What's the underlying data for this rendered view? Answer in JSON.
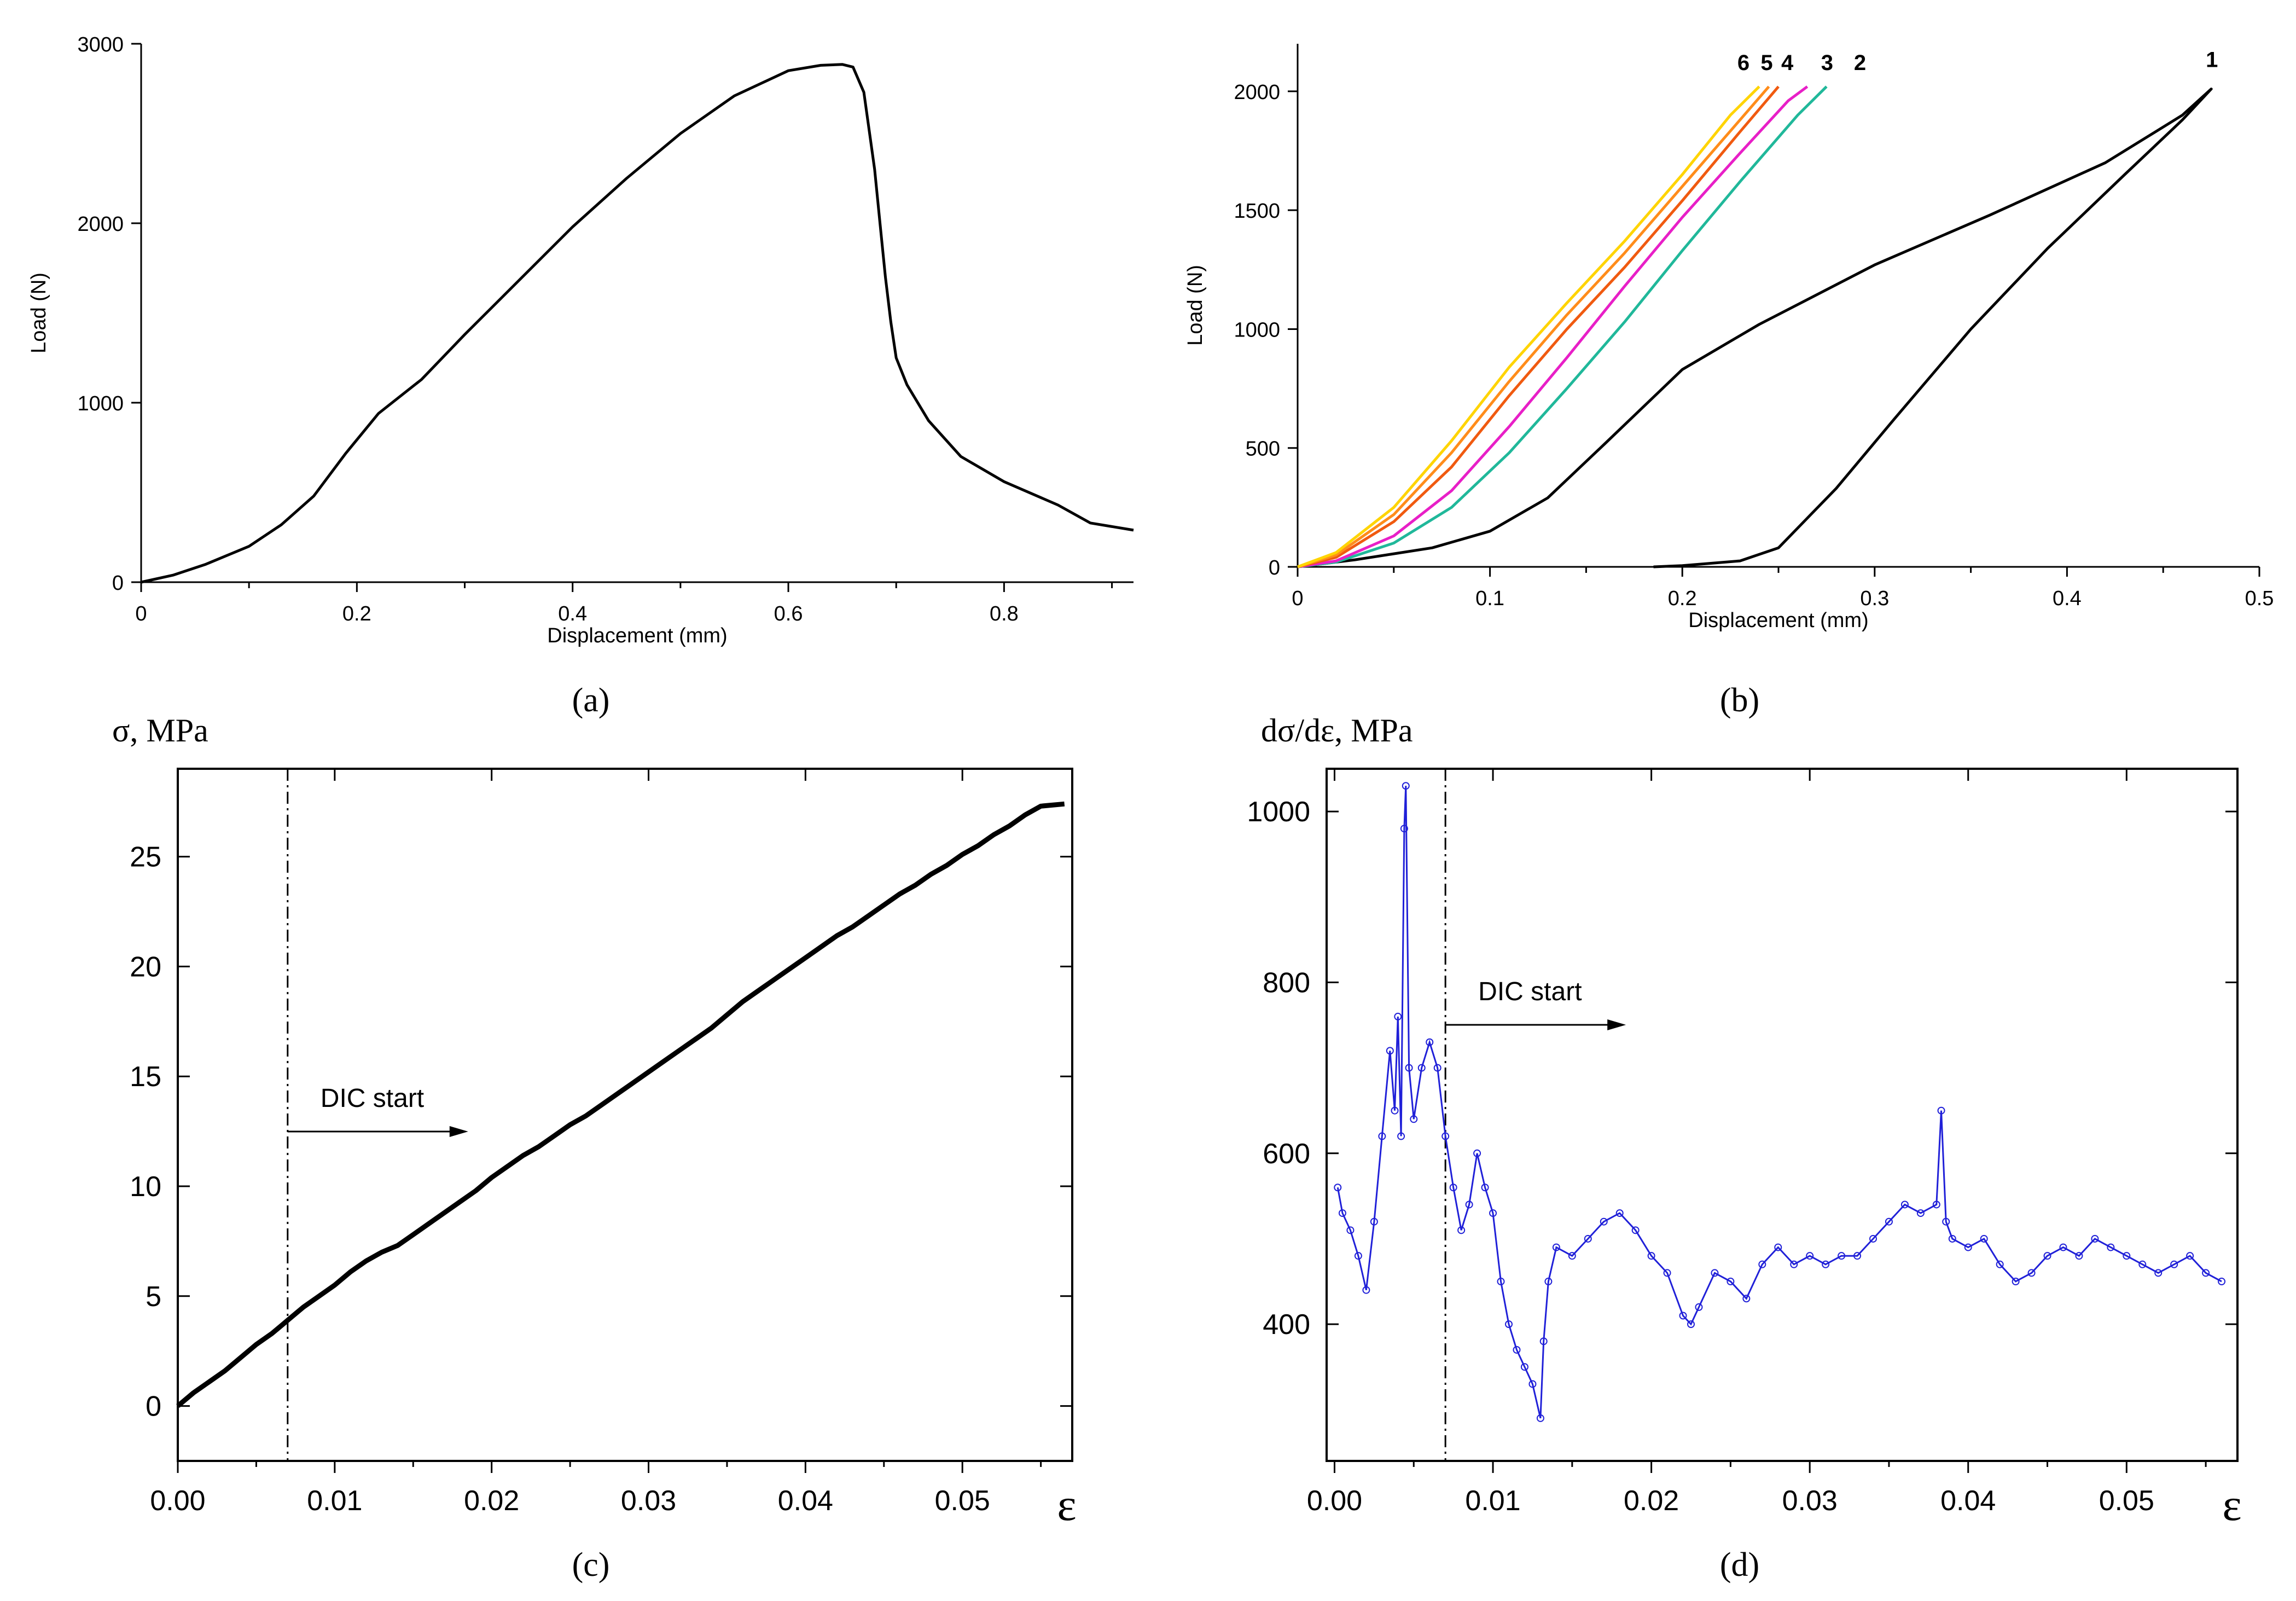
{
  "captions": {
    "a": "(a)",
    "b": "(b)",
    "c": "(c)",
    "d": "(d)"
  },
  "chart_data": [
    {
      "id": "a",
      "type": "line",
      "title": "",
      "xlabel": "Displacement (mm)",
      "ylabel": "Load (N)",
      "xlim": [
        0,
        0.92
      ],
      "ylim": [
        0,
        3000
      ],
      "xticks": [
        "0",
        "0.2",
        "0.4",
        "0.6",
        "0.8"
      ],
      "xtick_values": [
        0,
        0.2,
        0.4,
        0.6,
        0.8
      ],
      "yticks": [
        "0",
        "1000",
        "2000",
        "3000"
      ],
      "ytick_values": [
        0,
        1000,
        2000,
        3000
      ],
      "grid": false,
      "series": [
        {
          "name": "load-displacement",
          "color": "#000000",
          "x": [
            0,
            0.03,
            0.06,
            0.1,
            0.13,
            0.16,
            0.19,
            0.22,
            0.26,
            0.3,
            0.35,
            0.4,
            0.45,
            0.5,
            0.55,
            0.6,
            0.63,
            0.65,
            0.66,
            0.67,
            0.68,
            0.685,
            0.69,
            0.695,
            0.7,
            0.71,
            0.73,
            0.76,
            0.8,
            0.85,
            0.88,
            0.92
          ],
          "y": [
            0,
            40,
            100,
            200,
            320,
            480,
            720,
            940,
            1130,
            1380,
            1680,
            1980,
            2250,
            2500,
            2710,
            2850,
            2880,
            2885,
            2870,
            2730,
            2300,
            2000,
            1700,
            1450,
            1250,
            1100,
            900,
            700,
            560,
            430,
            330,
            290
          ]
        }
      ]
    },
    {
      "id": "b",
      "type": "line",
      "title": "",
      "xlabel": "Displacement (mm)",
      "ylabel": "Load (N)",
      "xlim": [
        0,
        0.5
      ],
      "ylim": [
        0,
        2200
      ],
      "xticks": [
        "0",
        "0.1",
        "0.2",
        "0.3",
        "0.4",
        "0.5"
      ],
      "xtick_values": [
        0,
        0.1,
        0.2,
        0.3,
        0.4,
        0.5
      ],
      "yticks": [
        "0",
        "500",
        "1000",
        "1500",
        "2000"
      ],
      "ytick_values": [
        0,
        500,
        1000,
        1500,
        2000
      ],
      "grid": false,
      "series": [
        {
          "name": "1",
          "color": "#000000",
          "x": [
            0,
            0.03,
            0.07,
            0.1,
            0.13,
            0.16,
            0.2,
            0.24,
            0.3,
            0.36,
            0.42,
            0.46,
            0.475,
            0.46,
            0.43,
            0.39,
            0.35,
            0.31,
            0.28,
            0.25,
            0.23,
            0.2,
            0.185
          ],
          "y": [
            0,
            30,
            80,
            150,
            290,
            520,
            830,
            1020,
            1270,
            1480,
            1700,
            1900,
            2010,
            1880,
            1650,
            1340,
            1000,
            620,
            330,
            80,
            25,
            5,
            0
          ]
        },
        {
          "name": "2",
          "color": "#20b89a",
          "x": [
            0,
            0.02,
            0.05,
            0.08,
            0.11,
            0.14,
            0.17,
            0.2,
            0.23,
            0.26,
            0.275
          ],
          "y": [
            0,
            20,
            100,
            250,
            480,
            750,
            1030,
            1330,
            1620,
            1900,
            2020
          ]
        },
        {
          "name": "3",
          "color": "#e81fc7",
          "x": [
            0,
            0.02,
            0.05,
            0.08,
            0.11,
            0.14,
            0.17,
            0.2,
            0.23,
            0.255,
            0.265
          ],
          "y": [
            0,
            25,
            130,
            320,
            590,
            880,
            1180,
            1470,
            1740,
            1960,
            2020
          ]
        },
        {
          "name": "4",
          "color": "#f05a10",
          "x": [
            0,
            0.02,
            0.05,
            0.08,
            0.11,
            0.14,
            0.17,
            0.2,
            0.23,
            0.25
          ],
          "y": [
            0,
            40,
            190,
            420,
            720,
            1000,
            1260,
            1540,
            1830,
            2020
          ]
        },
        {
          "name": "5",
          "color": "#ff8c1a",
          "x": [
            0,
            0.02,
            0.05,
            0.08,
            0.11,
            0.14,
            0.17,
            0.2,
            0.23,
            0.245
          ],
          "y": [
            0,
            50,
            220,
            480,
            780,
            1060,
            1320,
            1600,
            1880,
            2020
          ]
        },
        {
          "name": "6",
          "color": "#ffd400",
          "x": [
            0,
            0.02,
            0.05,
            0.08,
            0.11,
            0.14,
            0.17,
            0.2,
            0.225,
            0.24
          ],
          "y": [
            0,
            60,
            250,
            530,
            840,
            1110,
            1370,
            1650,
            1900,
            2020
          ]
        }
      ]
    },
    {
      "id": "c",
      "type": "line",
      "title": "",
      "xlabel": "ε",
      "ylabel": "σ, MPa",
      "xlim": [
        0,
        0.057
      ],
      "ylim": [
        -2.5,
        29
      ],
      "xticks": [
        "0.00",
        "0.01",
        "0.02",
        "0.03",
        "0.04",
        "0.05"
      ],
      "xtick_values": [
        0,
        0.01,
        0.02,
        0.03,
        0.04,
        0.05
      ],
      "yticks": [
        "0",
        "5",
        "10",
        "15",
        "20",
        "25"
      ],
      "ytick_values": [
        0,
        5,
        10,
        15,
        20,
        25
      ],
      "grid": false,
      "vline": 0.007,
      "annotation": "DIC start",
      "series": [
        {
          "name": "sigma",
          "color": "#000000",
          "x": [
            0,
            0.001,
            0.002,
            0.003,
            0.004,
            0.005,
            0.006,
            0.007,
            0.008,
            0.009,
            0.01,
            0.011,
            0.012,
            0.013,
            0.014,
            0.015,
            0.016,
            0.017,
            0.018,
            0.019,
            0.02,
            0.021,
            0.022,
            0.023,
            0.024,
            0.025,
            0.026,
            0.027,
            0.028,
            0.029,
            0.03,
            0.031,
            0.032,
            0.033,
            0.034,
            0.035,
            0.036,
            0.037,
            0.038,
            0.039,
            0.04,
            0.041,
            0.042,
            0.043,
            0.044,
            0.045,
            0.046,
            0.047,
            0.048,
            0.049,
            0.05,
            0.051,
            0.052,
            0.053,
            0.054,
            0.055,
            0.0565
          ],
          "y": [
            0,
            0.6,
            1.1,
            1.6,
            2.2,
            2.8,
            3.3,
            3.9,
            4.5,
            5.0,
            5.5,
            6.1,
            6.6,
            7.0,
            7.3,
            7.8,
            8.3,
            8.8,
            9.3,
            9.8,
            10.4,
            10.9,
            11.4,
            11.8,
            12.3,
            12.8,
            13.2,
            13.7,
            14.2,
            14.7,
            15.2,
            15.7,
            16.2,
            16.7,
            17.2,
            17.8,
            18.4,
            18.9,
            19.4,
            19.9,
            20.4,
            20.9,
            21.4,
            21.8,
            22.3,
            22.8,
            23.3,
            23.7,
            24.2,
            24.6,
            25.1,
            25.5,
            26.0,
            26.4,
            26.9,
            27.3,
            27.4
          ]
        }
      ]
    },
    {
      "id": "d",
      "type": "scatter",
      "title": "",
      "xlabel": "ε",
      "ylabel": "dσ/dε, MPa",
      "xlim": [
        -0.0005,
        0.057
      ],
      "ylim": [
        240,
        1050
      ],
      "xticks": [
        "0.00",
        "0.01",
        "0.02",
        "0.03",
        "0.04",
        "0.05"
      ],
      "xtick_values": [
        0,
        0.01,
        0.02,
        0.03,
        0.04,
        0.05
      ],
      "yticks": [
        "400",
        "600",
        "800",
        "1000"
      ],
      "ytick_values": [
        400,
        600,
        800,
        1000
      ],
      "grid": false,
      "vline": 0.007,
      "annotation": "DIC start",
      "series": [
        {
          "name": "dsigma-deps",
          "color": "#2020d8",
          "x": [
            0.0002,
            0.0005,
            0.001,
            0.0015,
            0.002,
            0.0025,
            0.003,
            0.0035,
            0.0038,
            0.004,
            0.0042,
            0.0044,
            0.0045,
            0.0047,
            0.005,
            0.0055,
            0.006,
            0.0065,
            0.007,
            0.0075,
            0.008,
            0.0085,
            0.009,
            0.0095,
            0.01,
            0.0105,
            0.011,
            0.0115,
            0.012,
            0.0125,
            0.013,
            0.0132,
            0.0135,
            0.014,
            0.015,
            0.016,
            0.017,
            0.018,
            0.019,
            0.02,
            0.021,
            0.022,
            0.0225,
            0.023,
            0.024,
            0.025,
            0.026,
            0.027,
            0.028,
            0.029,
            0.03,
            0.031,
            0.032,
            0.033,
            0.034,
            0.035,
            0.036,
            0.037,
            0.038,
            0.0383,
            0.0386,
            0.039,
            0.04,
            0.041,
            0.042,
            0.043,
            0.044,
            0.045,
            0.046,
            0.047,
            0.048,
            0.049,
            0.05,
            0.051,
            0.052,
            0.053,
            0.054,
            0.055,
            0.056
          ],
          "y": [
            560,
            530,
            510,
            480,
            440,
            520,
            620,
            720,
            650,
            760,
            620,
            980,
            1030,
            700,
            640,
            700,
            730,
            700,
            620,
            560,
            510,
            540,
            600,
            560,
            530,
            450,
            400,
            370,
            350,
            330,
            290,
            380,
            450,
            490,
            480,
            500,
            520,
            530,
            510,
            480,
            460,
            410,
            400,
            420,
            460,
            450,
            430,
            470,
            490,
            470,
            480,
            470,
            480,
            480,
            500,
            520,
            540,
            530,
            540,
            650,
            520,
            500,
            490,
            500,
            470,
            450,
            460,
            480,
            490,
            480,
            500,
            490,
            480,
            470,
            460,
            470,
            480,
            460,
            450
          ]
        }
      ]
    }
  ]
}
